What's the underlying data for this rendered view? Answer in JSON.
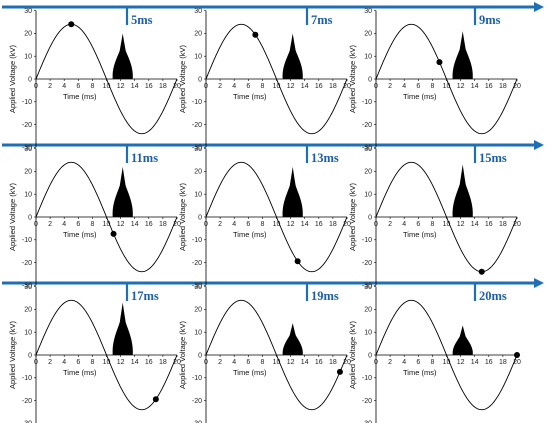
{
  "chart_data": {
    "type": "line",
    "panel_defaults": {
      "xlabel": "Time (ms)",
      "ylabel": "Applied Voltage (kV)",
      "xlim": [
        0,
        20
      ],
      "ylim": [
        -30,
        30
      ],
      "xticks": [
        0,
        2,
        4,
        6,
        8,
        10,
        12,
        14,
        16,
        18,
        20
      ],
      "yticks": [
        -30,
        -20,
        -10,
        0,
        10,
        20,
        30
      ],
      "series": {
        "name": "",
        "function": "sine",
        "amplitude_kV": 24,
        "period_ms": 20,
        "phase_ms": 0
      }
    },
    "panels": [
      {
        "label": "5ms",
        "marker": {
          "x": 5,
          "y": 24
        },
        "plume_height_kV": 20
      },
      {
        "label": "7ms",
        "marker": {
          "x": 7,
          "y": 19.4
        },
        "plume_height_kV": 20
      },
      {
        "label": "9ms",
        "marker": {
          "x": 9,
          "y": 7.4
        },
        "plume_height_kV": 21
      },
      {
        "label": "11ms",
        "marker": {
          "x": 11,
          "y": -7.4
        },
        "plume_height_kV": 22
      },
      {
        "label": "13ms",
        "marker": {
          "x": 13,
          "y": -19.4
        },
        "plume_height_kV": 22
      },
      {
        "label": "15ms",
        "marker": {
          "x": 15,
          "y": -24
        },
        "plume_height_kV": 23
      },
      {
        "label": "17ms",
        "marker": {
          "x": 17,
          "y": -19.4
        },
        "plume_height_kV": 23
      },
      {
        "label": "19ms",
        "marker": {
          "x": 19,
          "y": -7.4
        },
        "plume_height_kV": 14
      },
      {
        "label": "20ms",
        "marker": {
          "x": 20,
          "y": 0
        },
        "plume_height_kV": 13
      }
    ]
  },
  "colors": {
    "arrow": "#1f6fb5",
    "label": "#1f5fa8",
    "curve": "#000000",
    "plume": "#000000"
  }
}
